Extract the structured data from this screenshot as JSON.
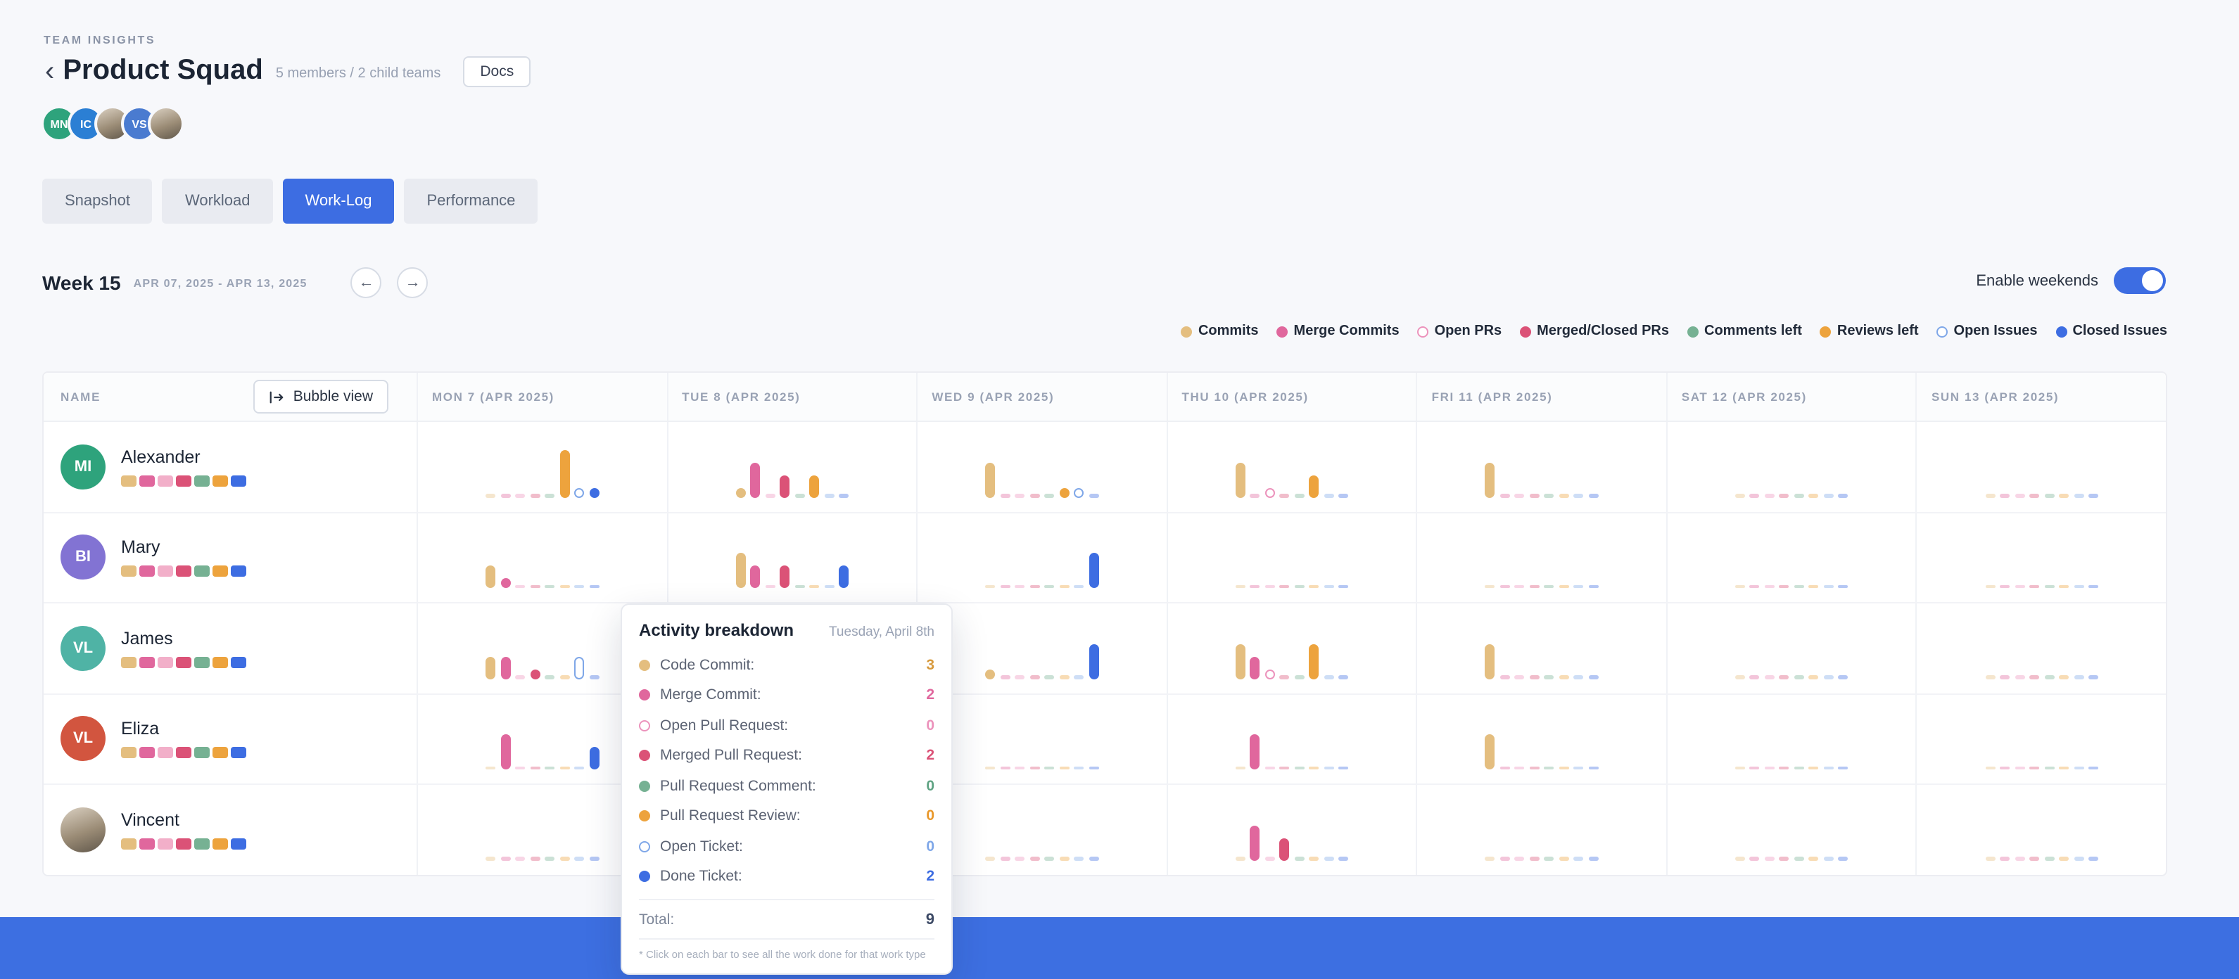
{
  "icons": {
    "back": "‹",
    "prev": "←",
    "next": "→"
  },
  "page": {
    "eyebrow": "TEAM INSIGHTS",
    "title": "Product Squad",
    "subtitle": "5 members / 2 child teams",
    "docs_label": "Docs"
  },
  "header_avatars": [
    {
      "initials": "MN",
      "color": "#2EA37C",
      "photo": false
    },
    {
      "initials": "IC",
      "color": "#2B7FD4",
      "photo": false
    },
    {
      "initials": "",
      "color": "",
      "photo": true
    },
    {
      "initials": "VS",
      "color": "#4A7BD0",
      "photo": false
    },
    {
      "initials": "",
      "color": "",
      "photo": true
    }
  ],
  "tabs": [
    {
      "label": "Snapshot",
      "active": false
    },
    {
      "label": "Workload",
      "active": false
    },
    {
      "label": "Work-Log",
      "active": true
    },
    {
      "label": "Performance",
      "active": false
    }
  ],
  "week": {
    "label": "Week 15",
    "range": "APR 07, 2025 - APR 13, 2025"
  },
  "weekend_toggle": {
    "label": "Enable weekends",
    "on": true
  },
  "work_types": [
    {
      "key": "commits",
      "legend": "Commits",
      "tooltip_label": "Code Commit:",
      "color": "#E4BE7F",
      "value_color": "#D79A3D",
      "outline": false
    },
    {
      "key": "merge-commits",
      "legend": "Merge Commits",
      "tooltip_label": "Merge Commit:",
      "color": "#E0679D",
      "value_color": "#E0679D",
      "outline": false
    },
    {
      "key": "open-prs",
      "legend": "Open PRs",
      "tooltip_label": "Open Pull Request:",
      "color": "#EC93BC",
      "value_color": "#EC93BC",
      "outline": true
    },
    {
      "key": "merged-prs",
      "legend": "Merged/Closed PRs",
      "tooltip_label": "Merged Pull Request:",
      "color": "#DB5277",
      "value_color": "#DB5277",
      "outline": false
    },
    {
      "key": "comments",
      "legend": "Comments left",
      "tooltip_label": "Pull Request Comment:",
      "color": "#76B193",
      "value_color": "#5FA383",
      "outline": false
    },
    {
      "key": "reviews",
      "legend": "Reviews left",
      "tooltip_label": "Pull Request Review:",
      "color": "#EDA33D",
      "value_color": "#E9982B",
      "outline": false
    },
    {
      "key": "open-issues",
      "legend": "Open Issues",
      "tooltip_label": "Open Ticket:",
      "color": "#7FA7E8",
      "value_color": "#7FA7E8",
      "outline": true
    },
    {
      "key": "closed-issues",
      "legend": "Closed Issues",
      "tooltip_label": "Done Ticket:",
      "color": "#3D6DE2",
      "value_color": "#3D6DE2",
      "outline": false
    }
  ],
  "distribution_colors": [
    "#E4BE7F",
    "#E0679D",
    "#F2AFC9",
    "#DB5277",
    "#76B193",
    "#EDA33D",
    "#3D6DE2"
  ],
  "table": {
    "name_header": "NAME",
    "bubble_view_label": "Bubble view",
    "day_headers": [
      "MON 7 (APR 2025)",
      "TUE 8 (APR 2025)",
      "WED 9 (APR 2025)",
      "THU 10 (APR 2025)",
      "FRI 11 (APR 2025)",
      "SAT 12 (APR 2025)",
      "SUN 13 (APR 2025)"
    ]
  },
  "chart_data": {
    "type": "bar",
    "title": "Work-Log weekly activity per member",
    "categories": [
      "Commits",
      "Merge Commits",
      "Open PRs",
      "Merged/Closed PRs",
      "Comments left",
      "Reviews left",
      "Open Issues",
      "Closed Issues"
    ],
    "rows": [
      {
        "name": "Alexander",
        "initials": "MI",
        "avatar_color": "#2EA37C",
        "photo": false,
        "days": [
          [
            0,
            0,
            0,
            0,
            0,
            4,
            1,
            1
          ],
          [
            1,
            3,
            0,
            2,
            0,
            2,
            0,
            0
          ],
          [
            3,
            0,
            0,
            0,
            0,
            1,
            1,
            0
          ],
          [
            3,
            0,
            1,
            0,
            0,
            2,
            0,
            0
          ],
          [
            3,
            0,
            0,
            0,
            0,
            0,
            0,
            0
          ],
          [
            0,
            0,
            0,
            0,
            0,
            0,
            0,
            0
          ],
          [
            0,
            0,
            0,
            0,
            0,
            0,
            0,
            0
          ]
        ]
      },
      {
        "name": "Mary",
        "initials": "BI",
        "avatar_color": "#8273D3",
        "photo": false,
        "days": [
          [
            2,
            1,
            0,
            0,
            0,
            0,
            0,
            0
          ],
          [
            3,
            2,
            0,
            2,
            0,
            0,
            0,
            2
          ],
          [
            0,
            0,
            0,
            0,
            0,
            0,
            0,
            3
          ],
          [
            0,
            0,
            0,
            0,
            0,
            0,
            0,
            0
          ],
          [
            0,
            0,
            0,
            0,
            0,
            0,
            0,
            0
          ],
          [
            0,
            0,
            0,
            0,
            0,
            0,
            0,
            0
          ],
          [
            0,
            0,
            0,
            0,
            0,
            0,
            0,
            0
          ]
        ]
      },
      {
        "name": "James",
        "initials": "VL",
        "avatar_color": "#4FB3A5",
        "photo": false,
        "days": [
          [
            2,
            2,
            0,
            1,
            0,
            0,
            2,
            0
          ],
          [
            3,
            2,
            0,
            2,
            0,
            0,
            0,
            2
          ],
          [
            1,
            0,
            0,
            0,
            0,
            0,
            0,
            3
          ],
          [
            3,
            2,
            1,
            0,
            0,
            3,
            0,
            0
          ],
          [
            3,
            0,
            0,
            0,
            0,
            0,
            0,
            0
          ],
          [
            0,
            0,
            0,
            0,
            0,
            0,
            0,
            0
          ],
          [
            0,
            0,
            0,
            0,
            0,
            0,
            0,
            0
          ]
        ]
      },
      {
        "name": "Eliza",
        "initials": "VL",
        "avatar_color": "#D2553F",
        "photo": false,
        "days": [
          [
            0,
            3,
            0,
            0,
            0,
            0,
            0,
            2
          ],
          [
            0,
            0,
            0,
            0,
            0,
            0,
            0,
            0
          ],
          [
            0,
            0,
            0,
            0,
            0,
            0,
            0,
            0
          ],
          [
            0,
            3,
            0,
            0,
            0,
            0,
            0,
            0
          ],
          [
            3,
            0,
            0,
            0,
            0,
            0,
            0,
            0
          ],
          [
            0,
            0,
            0,
            0,
            0,
            0,
            0,
            0
          ],
          [
            0,
            0,
            0,
            0,
            0,
            0,
            0,
            0
          ]
        ]
      },
      {
        "name": "Vincent",
        "initials": "",
        "avatar_color": "",
        "photo": true,
        "days": [
          [
            0,
            0,
            0,
            0,
            0,
            0,
            0,
            0
          ],
          [
            0,
            0,
            0,
            0,
            0,
            0,
            0,
            0
          ],
          [
            0,
            0,
            0,
            0,
            0,
            0,
            0,
            0
          ],
          [
            0,
            3,
            0,
            2,
            0,
            0,
            0,
            0
          ],
          [
            0,
            0,
            0,
            0,
            0,
            0,
            0,
            0
          ],
          [
            0,
            0,
            0,
            0,
            0,
            0,
            0,
            0
          ],
          [
            0,
            0,
            0,
            0,
            0,
            0,
            0,
            0
          ]
        ]
      }
    ]
  },
  "tooltip": {
    "title": "Activity breakdown",
    "date": "Tuesday, April 8th",
    "values": [
      3,
      2,
      0,
      2,
      0,
      0,
      0,
      2
    ],
    "total_label": "Total:",
    "total": "9",
    "footnote": "* Click on each bar to see all the work done for that work type"
  },
  "colors": {
    "accent_blue": "#3D6DE2",
    "footer_blue": "#3D6FE1",
    "page_bg": "#f7f8fb"
  }
}
